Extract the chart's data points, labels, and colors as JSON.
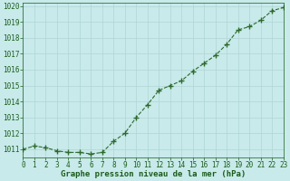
{
  "x": [
    0,
    1,
    2,
    3,
    4,
    5,
    6,
    7,
    8,
    9,
    10,
    11,
    12,
    13,
    14,
    15,
    16,
    17,
    18,
    19,
    20,
    21,
    22,
    23
  ],
  "y": [
    1011.0,
    1011.2,
    1011.1,
    1010.9,
    1010.8,
    1010.8,
    1010.7,
    1010.8,
    1011.5,
    1012.0,
    1013.0,
    1013.8,
    1014.7,
    1015.0,
    1015.3,
    1015.9,
    1016.4,
    1016.9,
    1017.6,
    1018.5,
    1018.7,
    1019.1,
    1019.7,
    1019.9
  ],
  "xlim": [
    0,
    23
  ],
  "ylim": [
    1010.5,
    1020.2
  ],
  "yticks": [
    1011,
    1012,
    1013,
    1014,
    1015,
    1016,
    1017,
    1018,
    1019,
    1020
  ],
  "xticks": [
    0,
    1,
    2,
    3,
    4,
    5,
    6,
    7,
    8,
    9,
    10,
    11,
    12,
    13,
    14,
    15,
    16,
    17,
    18,
    19,
    20,
    21,
    22,
    23
  ],
  "xlabel": "Graphe pression niveau de la mer (hPa)",
  "line_color": "#2d6a2d",
  "marker": "+",
  "marker_size": 4,
  "bg_color": "#c8eaea",
  "grid_color": "#b0d4d4",
  "label_color": "#1a5c1a",
  "tick_label_fontsize": 5.5,
  "xlabel_fontsize": 6.5
}
